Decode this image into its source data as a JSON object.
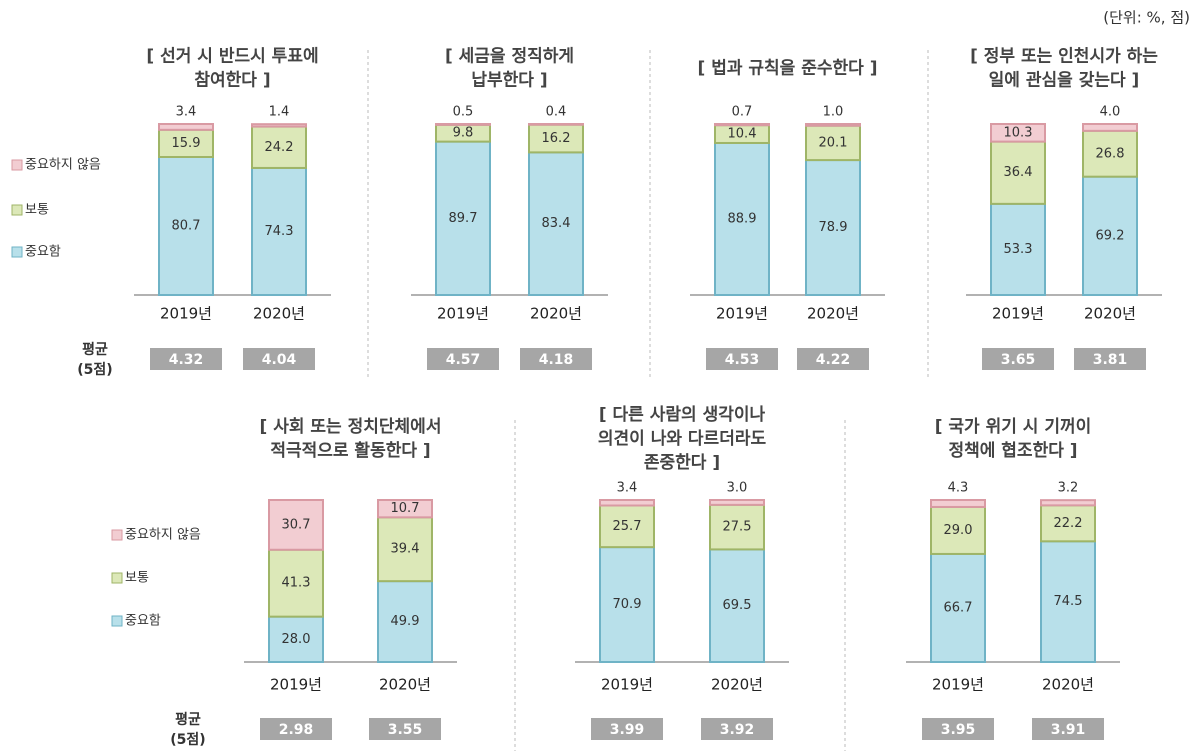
{
  "unit": "(단위: %, 점)",
  "average_label": [
    "평균",
    "(5점)"
  ],
  "chart_data": [
    {
      "type": "bar",
      "stacked": true,
      "title": [
        "[ 선거 시 반드시 투표에",
        "참여한다 ]"
      ],
      "categories": [
        "2019년",
        "2020년"
      ],
      "ylim": [
        0,
        100
      ],
      "series": [
        {
          "name": "중요함",
          "color": "#b8e0ea",
          "values": [
            80.7,
            74.3
          ],
          "value_labels": [
            "80.7",
            "74.3"
          ]
        },
        {
          "name": "보통",
          "color": "#dce8b8",
          "values": [
            15.9,
            24.2
          ],
          "value_labels": [
            "15.9",
            "24.2"
          ]
        },
        {
          "name": "중요하지 않음",
          "color": "#f2cdd2",
          "values": [
            3.4,
            1.4
          ],
          "value_labels": [
            "3.4",
            "1.4"
          ]
        }
      ],
      "averages": [
        4.32,
        4.04
      ]
    },
    {
      "type": "bar",
      "stacked": true,
      "title": [
        "[ 세금을 정직하게",
        "납부한다 ]"
      ],
      "categories": [
        "2019년",
        "2020년"
      ],
      "ylim": [
        0,
        100
      ],
      "series": [
        {
          "name": "중요함",
          "color": "#b8e0ea",
          "values": [
            89.7,
            83.4
          ],
          "value_labels": [
            "89.7",
            "83.4"
          ]
        },
        {
          "name": "보통",
          "color": "#dce8b8",
          "values": [
            9.8,
            16.2
          ],
          "value_labels": [
            "9.8",
            "16.2"
          ]
        },
        {
          "name": "중요하지 않음",
          "color": "#f2cdd2",
          "values": [
            0.5,
            0.4
          ],
          "value_labels": [
            "0.5",
            "0.4"
          ]
        }
      ],
      "averages": [
        4.57,
        4.18
      ]
    },
    {
      "type": "bar",
      "stacked": true,
      "title": [
        "[ 법과 규칙을 준수한다 ]"
      ],
      "categories": [
        "2019년",
        "2020년"
      ],
      "ylim": [
        0,
        100
      ],
      "series": [
        {
          "name": "중요함",
          "color": "#b8e0ea",
          "values": [
            88.9,
            78.9
          ],
          "value_labels": [
            "88.9",
            "78.9"
          ]
        },
        {
          "name": "보통",
          "color": "#dce8b8",
          "values": [
            10.4,
            20.1
          ],
          "value_labels": [
            "10.4",
            "20.1"
          ]
        },
        {
          "name": "중요하지 않음",
          "color": "#f2cdd2",
          "values": [
            0.7,
            1.0
          ],
          "value_labels": [
            "0.7",
            "1.0"
          ]
        }
      ],
      "averages": [
        4.53,
        4.22
      ]
    },
    {
      "type": "bar",
      "stacked": true,
      "title": [
        "[ 정부 또는 인천시가 하는",
        "일에 관심을 갖는다 ]"
      ],
      "categories": [
        "2019년",
        "2020년"
      ],
      "ylim": [
        0,
        100
      ],
      "series": [
        {
          "name": "중요함",
          "color": "#b8e0ea",
          "values": [
            53.3,
            69.2
          ],
          "value_labels": [
            "53.3",
            "69.2"
          ]
        },
        {
          "name": "보통",
          "color": "#dce8b8",
          "values": [
            36.4,
            26.8
          ],
          "value_labels": [
            "36.4",
            "26.8"
          ]
        },
        {
          "name": "중요하지 않음",
          "color": "#f2cdd2",
          "values": [
            10.3,
            4.0
          ],
          "value_labels": [
            "10.3",
            "4.0"
          ]
        }
      ],
      "averages": [
        3.65,
        3.81
      ]
    },
    {
      "type": "bar",
      "stacked": true,
      "title": [
        "[ 사회 또는 정치단체에서",
        "적극적으로 활동한다 ]"
      ],
      "categories": [
        "2019년",
        "2020년"
      ],
      "ylim": [
        0,
        100
      ],
      "series": [
        {
          "name": "중요함",
          "color": "#b8e0ea",
          "values": [
            28.0,
            49.9
          ],
          "value_labels": [
            "28.0",
            "49.9"
          ]
        },
        {
          "name": "보통",
          "color": "#dce8b8",
          "values": [
            41.3,
            39.4
          ],
          "value_labels": [
            "41.3",
            "39.4"
          ]
        },
        {
          "name": "중요하지 않음",
          "color": "#f2cdd2",
          "values": [
            30.7,
            10.7
          ],
          "value_labels": [
            "30.7",
            "10.7"
          ]
        }
      ],
      "averages": [
        2.98,
        3.55
      ]
    },
    {
      "type": "bar",
      "stacked": true,
      "title": [
        "[ 다른 사람의 생각이나",
        "의견이 나와 다르더라도",
        "존중한다 ]"
      ],
      "categories": [
        "2019년",
        "2020년"
      ],
      "ylim": [
        0,
        100
      ],
      "series": [
        {
          "name": "중요함",
          "color": "#b8e0ea",
          "values": [
            70.9,
            69.5
          ],
          "value_labels": [
            "70.9",
            "69.5"
          ]
        },
        {
          "name": "보통",
          "color": "#dce8b8",
          "values": [
            25.7,
            27.5
          ],
          "value_labels": [
            "25.7",
            "27.5"
          ]
        },
        {
          "name": "중요하지 않음",
          "color": "#f2cdd2",
          "values": [
            3.4,
            3.0
          ],
          "value_labels": [
            "3.4",
            "3.0"
          ]
        }
      ],
      "averages": [
        3.99,
        3.92
      ]
    },
    {
      "type": "bar",
      "stacked": true,
      "title": [
        "[ 국가 위기 시 기꺼이",
        "정책에 협조한다 ]"
      ],
      "categories": [
        "2019년",
        "2020년"
      ],
      "ylim": [
        0,
        100
      ],
      "series": [
        {
          "name": "중요함",
          "color": "#b8e0ea",
          "values": [
            66.7,
            74.5
          ],
          "value_labels": [
            "66.7",
            "74.5"
          ]
        },
        {
          "name": "보통",
          "color": "#dce8b8",
          "values": [
            29.0,
            22.2
          ],
          "value_labels": [
            "29.0",
            "22.2"
          ]
        },
        {
          "name": "중요하지 않음",
          "color": "#f2cdd2",
          "values": [
            4.3,
            3.2
          ],
          "value_labels": [
            "4.3",
            "3.2"
          ]
        }
      ],
      "averages": [
        3.95,
        3.91
      ]
    }
  ]
}
